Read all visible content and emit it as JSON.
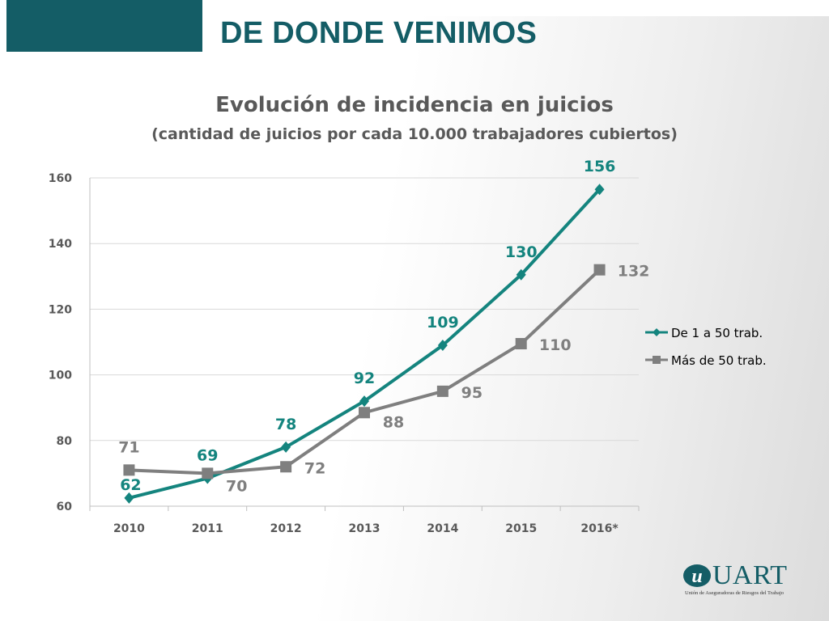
{
  "slide": {
    "title": "DE DONDE VENIMOS",
    "accent_color": "#145d66"
  },
  "chart_data": {
    "type": "line",
    "title": "Evolución de incidencia en juicios",
    "subtitle": "(cantidad de juicios por cada 10.000 trabajadores cubiertos)",
    "categories": [
      "2010",
      "2011",
      "2012",
      "2013",
      "2014",
      "2015",
      "2016*"
    ],
    "ylim": [
      60,
      160
    ],
    "yticks": [
      60,
      80,
      100,
      120,
      140,
      160
    ],
    "grid": true,
    "legend_position": "right",
    "series": [
      {
        "name": "De 1 a 50 trab.",
        "values": [
          62.5,
          68.5,
          78,
          92,
          109,
          130.5,
          156.5
        ],
        "labels": [
          "62",
          "69",
          "78",
          "92",
          "109",
          "130",
          "156"
        ],
        "color": "#14847e",
        "marker": "diamond"
      },
      {
        "name": "Más de 50 trab.",
        "values": [
          71,
          70,
          72,
          88.5,
          95,
          109.5,
          132
        ],
        "labels": [
          "71",
          "70",
          "72",
          "88",
          "95",
          "110",
          "132"
        ],
        "color": "#7f7f7f",
        "marker": "square"
      }
    ]
  },
  "logo": {
    "name": "UART",
    "tagline": "Unión de Aseguradoras de Riesgos del Trabajo",
    "icon": "uart-logo-icon"
  }
}
